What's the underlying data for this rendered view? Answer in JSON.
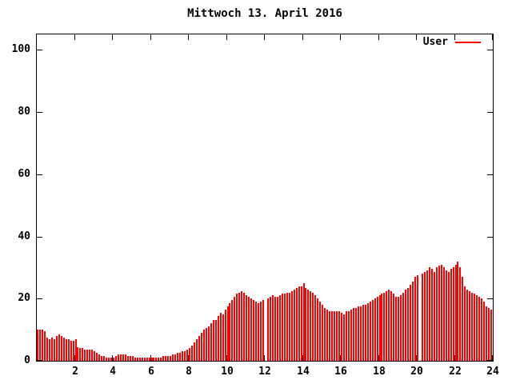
{
  "title": "Mittwoch 13. April 2016",
  "legend": {
    "label": "User"
  },
  "colors": {
    "series": "#ff0000",
    "axis": "#000000",
    "background": "#ffffff",
    "text": "#000000"
  },
  "chart_data": {
    "type": "bar",
    "style": "impulses",
    "title": "Mittwoch 13. April 2016",
    "xlabel": "",
    "ylabel": "",
    "xlim": [
      0,
      24
    ],
    "ylim": [
      0,
      105
    ],
    "x_ticks": [
      2,
      4,
      6,
      8,
      10,
      12,
      14,
      16,
      18,
      20,
      22,
      24
    ],
    "y_ticks": [
      0,
      20,
      40,
      60,
      80,
      100
    ],
    "grid": false,
    "legend_position": "top-right",
    "samples_per_hour": 8,
    "series": [
      {
        "name": "User",
        "color": "#ff0000",
        "values": [
          10,
          10,
          10,
          9.5,
          7.5,
          7,
          7.5,
          7,
          8,
          8.5,
          8,
          7.5,
          7,
          7,
          6.5,
          6.5,
          7,
          4.5,
          4,
          4,
          3.5,
          3.5,
          3.5,
          3.5,
          3,
          2.5,
          2,
          1.5,
          1.5,
          1,
          1,
          1,
          1,
          1.5,
          2,
          2,
          2,
          2,
          1.5,
          1.5,
          1.5,
          1,
          1,
          1,
          1,
          1,
          1,
          1,
          1,
          1,
          1,
          1,
          1,
          1.5,
          1.5,
          1.5,
          1.5,
          2,
          2,
          2.5,
          2.5,
          3,
          3,
          3.5,
          4,
          5,
          6,
          7,
          8,
          9,
          10,
          10.5,
          11,
          12,
          13,
          13,
          14.5,
          15.5,
          15,
          16.5,
          17.5,
          18.5,
          19.5,
          20.5,
          21.5,
          22,
          22.5,
          22,
          21,
          20.5,
          20,
          19.5,
          19,
          18.5,
          19,
          19.5,
          0,
          20,
          20.5,
          21,
          20.5,
          20.5,
          21,
          21.5,
          21.5,
          22,
          22,
          22.5,
          23,
          23.5,
          24,
          24,
          25,
          23.5,
          23,
          22.5,
          22,
          21,
          20,
          19,
          18,
          17,
          16.5,
          16,
          16,
          16,
          16,
          16,
          15.5,
          15,
          16,
          16,
          16.5,
          17,
          17,
          17.5,
          17.5,
          18,
          18,
          18.5,
          19,
          19.5,
          20,
          20.5,
          21,
          21.5,
          22,
          22.5,
          23,
          22.5,
          21.5,
          20.5,
          20.5,
          21,
          22,
          23,
          23.5,
          24.5,
          25.5,
          27,
          27.5,
          0,
          28,
          28.5,
          29,
          30,
          29.5,
          28.5,
          30,
          30.5,
          31,
          30,
          29,
          28.5,
          29.5,
          30,
          31,
          32,
          30,
          27,
          24,
          23,
          22.5,
          22,
          21.5,
          21,
          20.5,
          20,
          19,
          17.5,
          17,
          16.5
        ]
      }
    ]
  }
}
